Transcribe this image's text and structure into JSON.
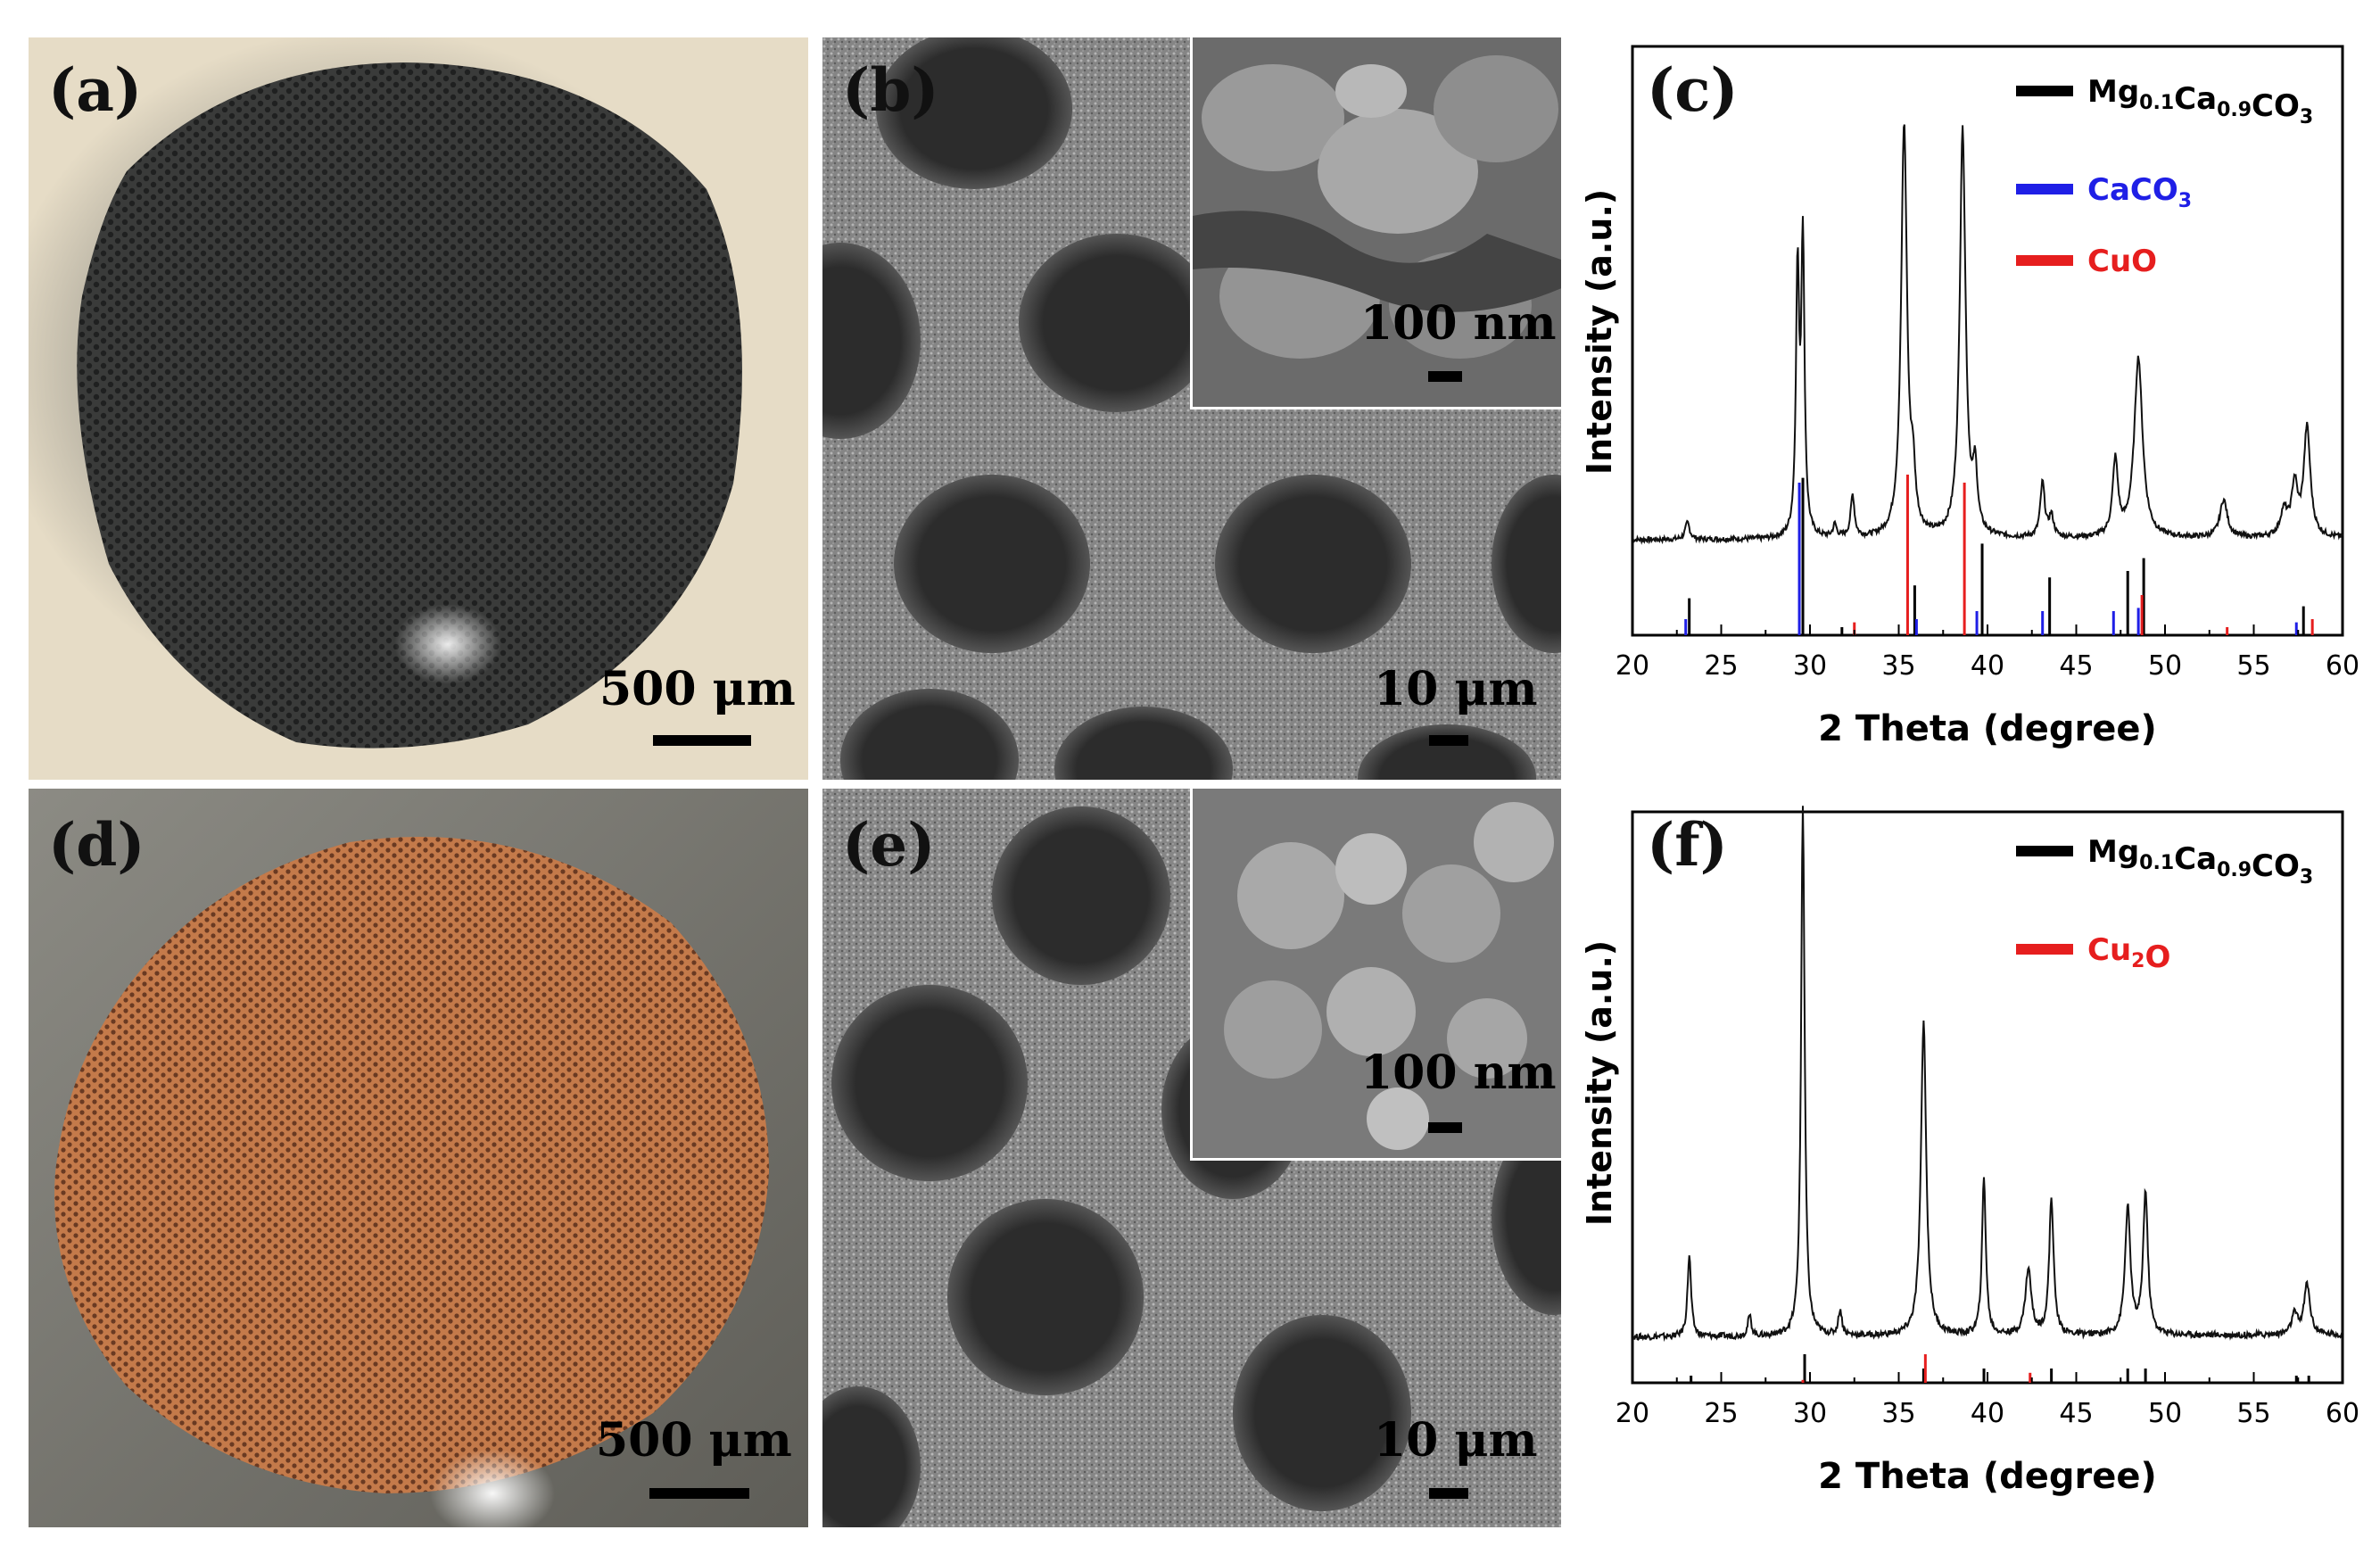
{
  "panels": {
    "a": {
      "label": "(a)",
      "scale_bar": "500 μm"
    },
    "b": {
      "label": "(b)",
      "scale_bar": "10 μm",
      "inset_scale_bar": "100 nm"
    },
    "c": {
      "label": "(c)"
    },
    "d": {
      "label": "(d)",
      "scale_bar": "500 μm"
    },
    "e": {
      "label": "(e)",
      "scale_bar": "10 μm",
      "inset_scale_bar": "100 nm"
    },
    "f": {
      "label": "(f)"
    }
  },
  "colors": {
    "black": "#000000",
    "blue": "#1f1fe6",
    "red": "#e61e1e"
  },
  "chart_data": [
    {
      "type": "line",
      "panel": "c",
      "xlabel": "2 Theta (degree)",
      "ylabel": "Intensity (a.u.)",
      "xlim": [
        20,
        60
      ],
      "xticks": [
        20,
        25,
        30,
        35,
        40,
        45,
        50,
        55,
        60
      ],
      "legend": [
        {
          "base": "Mg",
          "sub1": "0.1",
          "mid": "Ca",
          "sub2": "0.9",
          "tail": "CO",
          "sub3": "3",
          "color": "#000000"
        },
        {
          "base": "CaCO",
          "sub1": "3",
          "color": "#1f1fe6"
        },
        {
          "base": "CuO",
          "color": "#e61e1e"
        }
      ],
      "peaks": [
        [
          23.1,
          0.04,
          0.15
        ],
        [
          29.3,
          0.62,
          0.11
        ],
        [
          29.6,
          0.7,
          0.11
        ],
        [
          31.4,
          0.03,
          0.12
        ],
        [
          32.4,
          0.1,
          0.13
        ],
        [
          35.3,
          0.98,
          0.2
        ],
        [
          35.8,
          0.12,
          0.15
        ],
        [
          38.6,
          0.97,
          0.2
        ],
        [
          39.3,
          0.14,
          0.15
        ],
        [
          43.1,
          0.13,
          0.15
        ],
        [
          43.6,
          0.05,
          0.15
        ],
        [
          47.2,
          0.18,
          0.18
        ],
        [
          48.5,
          0.43,
          0.28
        ],
        [
          53.3,
          0.09,
          0.25
        ],
        [
          56.7,
          0.06,
          0.25
        ],
        [
          57.3,
          0.12,
          0.2
        ],
        [
          58.0,
          0.26,
          0.22
        ]
      ],
      "reference_lines": [
        {
          "color": "#000000",
          "x": [
            23.2,
            29.6,
            31.8,
            35.9,
            39.7,
            43.5,
            47.9,
            48.8,
            57.8
          ],
          "h": [
            0.23,
            0.98,
            0.05,
            0.31,
            0.57,
            0.36,
            0.4,
            0.48,
            0.18
          ]
        },
        {
          "color": "#1f1fe6",
          "x": [
            23.0,
            29.4,
            36.0,
            39.4,
            43.1,
            47.1,
            48.5,
            57.4
          ],
          "h": [
            0.1,
            0.95,
            0.1,
            0.15,
            0.15,
            0.15,
            0.17,
            0.08
          ]
        },
        {
          "color": "#e61e1e",
          "x": [
            32.5,
            35.5,
            38.7,
            48.7,
            53.5,
            58.3
          ],
          "h": [
            0.08,
            1.0,
            0.95,
            0.25,
            0.05,
            0.1
          ]
        }
      ]
    },
    {
      "type": "line",
      "panel": "f",
      "xlabel": "2 Theta (degree)",
      "ylabel": "Intensity (a.u.)",
      "xlim": [
        20,
        60
      ],
      "xticks": [
        20,
        25,
        30,
        35,
        40,
        45,
        50,
        55,
        60
      ],
      "legend": [
        {
          "base": "Mg",
          "sub1": "0.1",
          "mid": "Ca",
          "sub2": "0.9",
          "tail": "CO",
          "sub3": "3",
          "color": "#000000"
        },
        {
          "base": "Cu",
          "sub1": "2",
          "tail": "O",
          "color": "#e61e1e"
        }
      ],
      "peaks": [
        [
          23.2,
          0.16,
          0.12
        ],
        [
          26.6,
          0.04,
          0.12
        ],
        [
          29.6,
          1.05,
          0.12
        ],
        [
          31.7,
          0.05,
          0.12
        ],
        [
          36.4,
          0.62,
          0.18
        ],
        [
          39.8,
          0.31,
          0.13
        ],
        [
          42.3,
          0.13,
          0.2
        ],
        [
          43.6,
          0.27,
          0.15
        ],
        [
          47.9,
          0.25,
          0.18
        ],
        [
          48.9,
          0.28,
          0.16
        ],
        [
          57.3,
          0.04,
          0.2
        ],
        [
          58.0,
          0.1,
          0.2
        ]
      ],
      "reference_lines": [
        {
          "color": "#000000",
          "x": [
            23.3,
            29.7,
            36.4,
            39.8,
            43.6,
            47.9,
            48.9,
            57.4,
            58.1
          ],
          "h": [
            0.25,
            1.0,
            0.5,
            0.5,
            0.5,
            0.5,
            0.5,
            0.25,
            0.25
          ]
        },
        {
          "color": "#e61e1e",
          "x": [
            29.6,
            36.5,
            42.4
          ],
          "h": [
            0.1,
            1.0,
            0.35
          ]
        }
      ]
    }
  ]
}
